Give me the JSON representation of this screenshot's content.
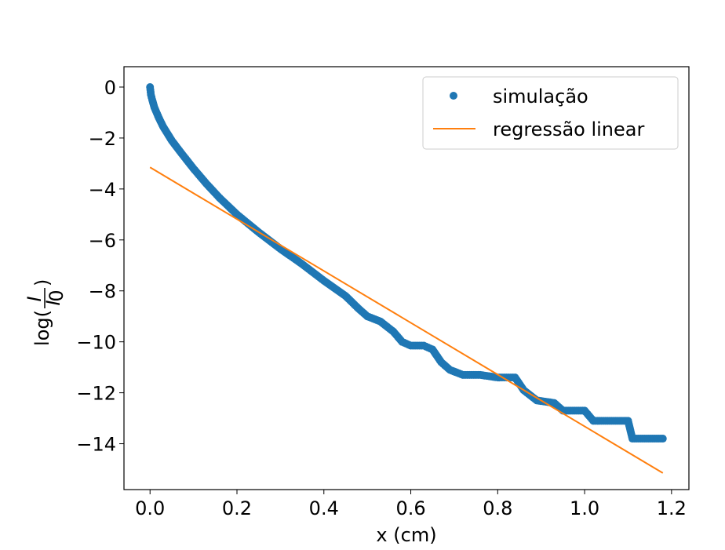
{
  "chart_data": {
    "type": "scatter",
    "xlabel": "x (cm)",
    "ylabel": "log(I/I0)",
    "ylabel_parts": {
      "prefix": "log(",
      "numerator": "I",
      "denominator": "I",
      "denominator_subscript": "0",
      "suffix": ")"
    },
    "xlim": [
      -0.06,
      1.24
    ],
    "ylim": [
      -15.8,
      0.8
    ],
    "xticks": [
      0.0,
      0.2,
      0.4,
      0.6,
      0.8,
      1.0,
      1.2
    ],
    "xtick_labels": [
      "0.0",
      "0.2",
      "0.4",
      "0.6",
      "0.8",
      "1.0",
      "1.2"
    ],
    "yticks": [
      0,
      -2,
      -4,
      -6,
      -8,
      -10,
      -12,
      -14
    ],
    "ytick_labels": [
      "0",
      "−2",
      "−4",
      "−6",
      "−8",
      "−10",
      "−12",
      "−14"
    ],
    "grid": false,
    "legend_position": "top-right",
    "series": [
      {
        "name": "simulação",
        "kind": "scatter",
        "color": "#1f77b4",
        "points": [
          [
            0.0,
            0.0
          ],
          [
            0.002,
            -0.3
          ],
          [
            0.005,
            -0.5
          ],
          [
            0.01,
            -0.8
          ],
          [
            0.02,
            -1.2
          ],
          [
            0.03,
            -1.55
          ],
          [
            0.05,
            -2.1
          ],
          [
            0.07,
            -2.55
          ],
          [
            0.1,
            -3.2
          ],
          [
            0.13,
            -3.8
          ],
          [
            0.16,
            -4.35
          ],
          [
            0.2,
            -5.0
          ],
          [
            0.25,
            -5.7
          ],
          [
            0.3,
            -6.35
          ],
          [
            0.35,
            -6.95
          ],
          [
            0.4,
            -7.6
          ],
          [
            0.45,
            -8.2
          ],
          [
            0.48,
            -8.7
          ],
          [
            0.5,
            -9.0
          ],
          [
            0.53,
            -9.2
          ],
          [
            0.56,
            -9.6
          ],
          [
            0.58,
            -10.0
          ],
          [
            0.6,
            -10.15
          ],
          [
            0.63,
            -10.15
          ],
          [
            0.65,
            -10.3
          ],
          [
            0.67,
            -10.8
          ],
          [
            0.69,
            -11.1
          ],
          [
            0.72,
            -11.3
          ],
          [
            0.76,
            -11.3
          ],
          [
            0.8,
            -11.4
          ],
          [
            0.84,
            -11.4
          ],
          [
            0.86,
            -11.9
          ],
          [
            0.89,
            -12.3
          ],
          [
            0.93,
            -12.4
          ],
          [
            0.95,
            -12.7
          ],
          [
            1.0,
            -12.7
          ],
          [
            1.02,
            -13.1
          ],
          [
            1.1,
            -13.1
          ],
          [
            1.11,
            -13.8
          ],
          [
            1.18,
            -13.8
          ]
        ]
      },
      {
        "name": "regressão linear",
        "kind": "line",
        "color": "#ff7f0e",
        "points": [
          [
            0.0,
            -3.15
          ],
          [
            1.18,
            -15.15
          ]
        ]
      }
    ]
  }
}
